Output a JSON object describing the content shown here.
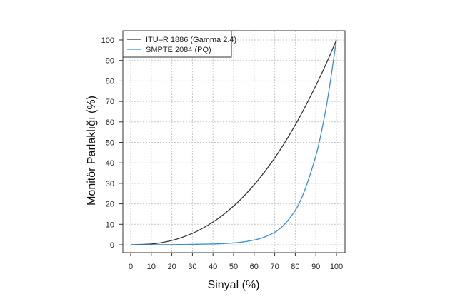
{
  "chart_data": {
    "type": "line",
    "title": "",
    "xlabel": "Sinyal (%)",
    "ylabel": "Monitör Parlaklığı (%)",
    "xlim": [
      0,
      100
    ],
    "ylim": [
      0,
      100
    ],
    "xticks": [
      0,
      10,
      20,
      30,
      40,
      50,
      60,
      70,
      80,
      90,
      100
    ],
    "yticks": [
      0,
      10,
      20,
      30,
      40,
      50,
      60,
      70,
      80,
      90,
      100
    ],
    "grid": true,
    "legend_position": "top-left",
    "x": [
      0,
      10,
      20,
      30,
      40,
      50,
      60,
      70,
      80,
      90,
      95,
      100
    ],
    "series": [
      {
        "name": "ITU–R 1886 (Gamma 2.4)",
        "color": "#333333",
        "values": [
          0,
          0.4,
          2.1,
          5.6,
          11.1,
          18.9,
          29.3,
          42.4,
          58.5,
          77.7,
          88.4,
          100
        ]
      },
      {
        "name": "SMPTE 2084 (PQ)",
        "color": "#3a8fd0",
        "values": [
          0,
          0.03,
          0.09,
          0.2,
          0.4,
          0.9,
          2.3,
          6.1,
          16.8,
          43.5,
          67,
          100
        ]
      }
    ]
  }
}
